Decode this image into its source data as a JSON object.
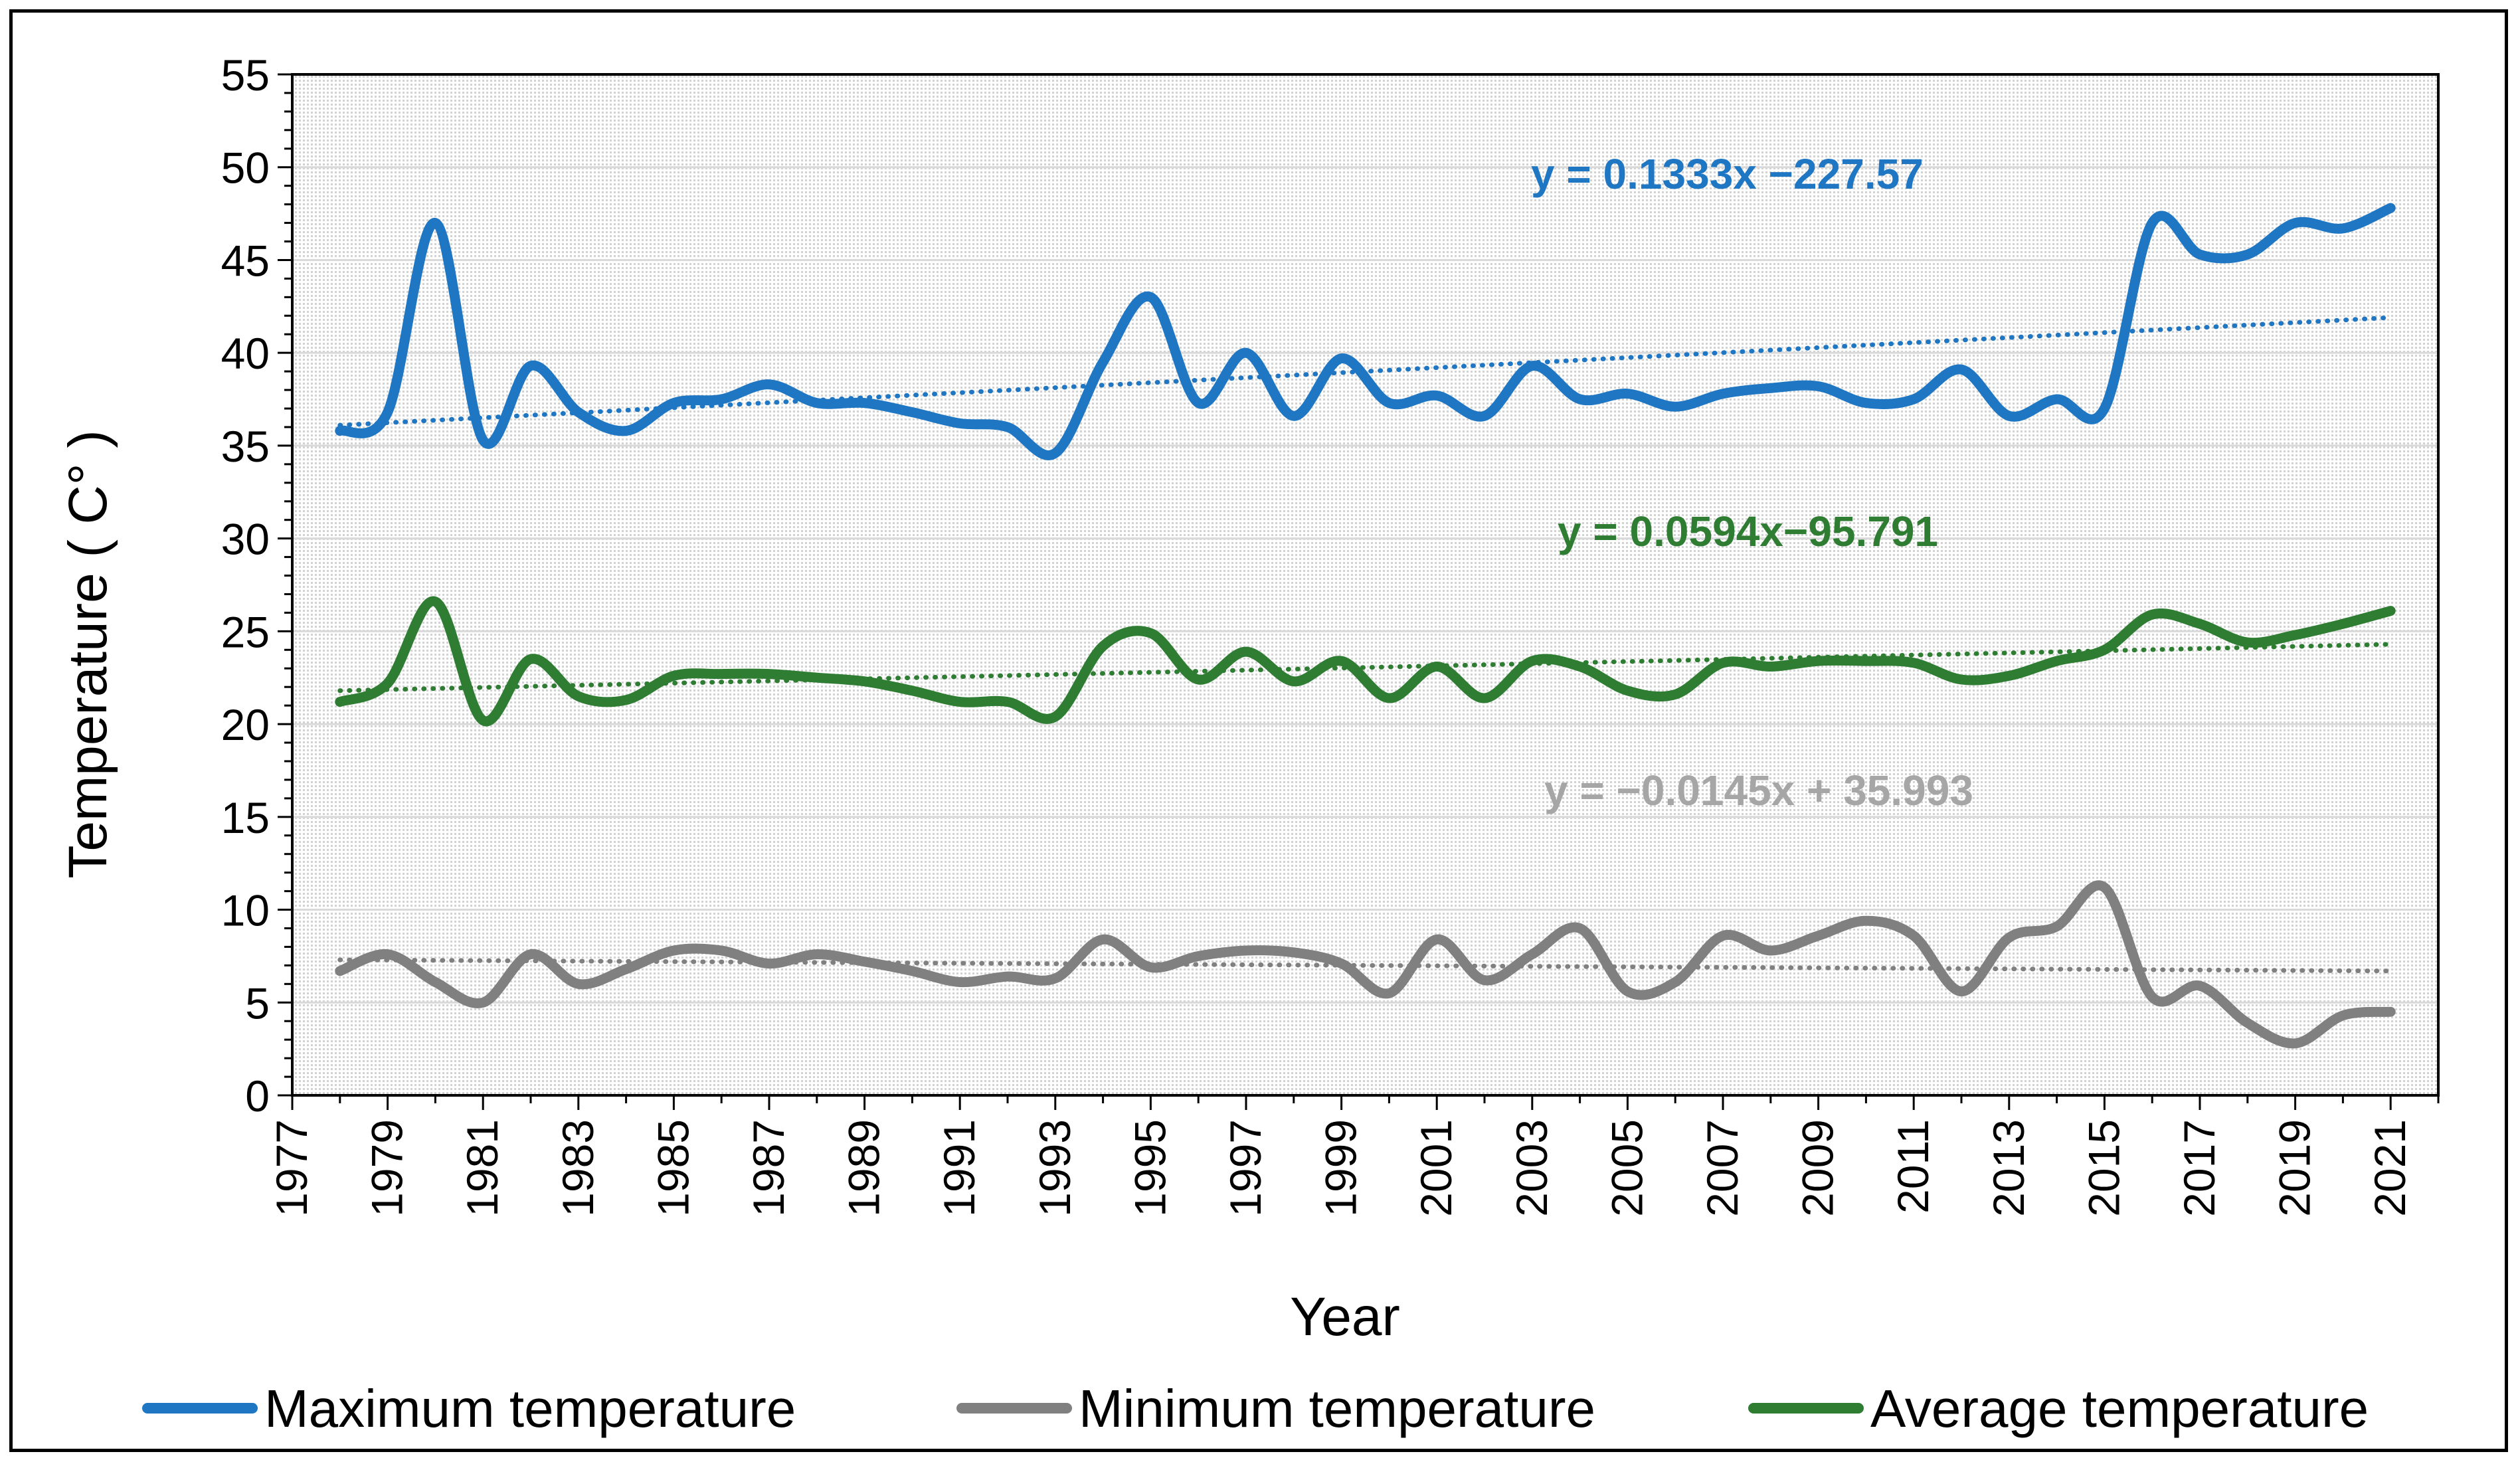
{
  "chart_data": {
    "type": "line",
    "title": "",
    "xlabel": "Year",
    "ylabel": "Temperature ( C° )",
    "xlim": [
      1977,
      2022
    ],
    "ylim": [
      0,
      55
    ],
    "x_ticks": [
      "1977",
      "1979",
      "1981",
      "1983",
      "1985",
      "1987",
      "1989",
      "1991",
      "1993",
      "1995",
      "1997",
      "1999",
      "2001",
      "2003",
      "2005",
      "2007",
      "2009",
      "2011",
      "2013",
      "2015",
      "2017",
      "2019",
      "2021"
    ],
    "y_ticks": [
      "0",
      "5",
      "10",
      "15",
      "20",
      "25",
      "30",
      "35",
      "40",
      "45",
      "50",
      "55"
    ],
    "grid": true,
    "legend_position": "bottom",
    "x": [
      1978,
      1979,
      1980,
      1981,
      1982,
      1983,
      1984,
      1985,
      1986,
      1987,
      1988,
      1989,
      1990,
      1991,
      1992,
      1993,
      1994,
      1995,
      1996,
      1997,
      1998,
      1999,
      2000,
      2001,
      2002,
      2003,
      2004,
      2005,
      2006,
      2007,
      2008,
      2009,
      2010,
      2011,
      2012,
      2013,
      2014,
      2015,
      2016,
      2017,
      2018,
      2019,
      2020,
      2021
    ],
    "series": [
      {
        "name": "Maximum temperature",
        "color": "#1f77c4",
        "values": [
          35.8,
          36.8,
          47.0,
          35.3,
          39.3,
          36.8,
          35.8,
          37.3,
          37.5,
          38.3,
          37.3,
          37.3,
          36.8,
          36.2,
          36.0,
          34.6,
          39.5,
          43.0,
          37.3,
          40.0,
          36.6,
          39.7,
          37.3,
          37.7,
          36.6,
          39.3,
          37.5,
          37.8,
          37.1,
          37.8,
          38.1,
          38.2,
          37.3,
          37.5,
          39.1,
          36.6,
          37.5,
          37.0,
          47.0,
          45.3,
          45.3,
          47.0,
          46.7,
          47.8
        ],
        "trendline": {
          "start": 36.1,
          "end": 41.9,
          "equation": "y = 0.1333x −227.57"
        }
      },
      {
        "name": "Minimum temperature",
        "color": "#808080",
        "values": [
          6.7,
          7.6,
          6.1,
          5.0,
          7.6,
          6.0,
          6.8,
          7.8,
          7.8,
          7.1,
          7.6,
          7.2,
          6.7,
          6.1,
          6.4,
          6.3,
          8.4,
          6.9,
          7.5,
          7.8,
          7.7,
          7.1,
          5.5,
          8.4,
          6.2,
          7.6,
          9.0,
          5.6,
          6.1,
          8.6,
          7.8,
          8.6,
          9.4,
          8.6,
          5.6,
          8.5,
          9.1,
          11.2,
          5.3,
          5.9,
          3.9,
          2.8,
          4.3,
          4.5
        ],
        "trendline": {
          "start": 7.3,
          "end": 6.7,
          "equation": "y = −0.0145x + 35.993"
        }
      },
      {
        "name": "Average temperature",
        "color": "#2e7d32",
        "values": [
          21.2,
          22.2,
          26.6,
          20.2,
          23.5,
          21.5,
          21.3,
          22.6,
          22.7,
          22.7,
          22.5,
          22.3,
          21.8,
          21.2,
          21.2,
          20.4,
          24.2,
          24.9,
          22.4,
          23.9,
          22.3,
          23.4,
          21.4,
          23.1,
          21.4,
          23.4,
          23.1,
          21.8,
          21.6,
          23.3,
          23.1,
          23.4,
          23.4,
          23.3,
          22.4,
          22.6,
          23.4,
          24.0,
          25.9,
          25.4,
          24.4,
          24.8,
          25.4,
          26.1
        ],
        "trendline": {
          "start": 21.8,
          "end": 24.3,
          "equation": "y = 0.0594x−95.791"
        }
      }
    ]
  }
}
